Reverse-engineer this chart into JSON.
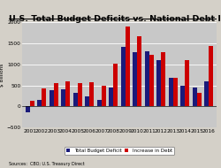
{
  "title": "U.S. Total Budget Deficits vs. National Debt Increases",
  "ylabel": "$ Billions",
  "years": [
    2001,
    2002,
    2003,
    2004,
    2005,
    2006,
    2007,
    2008,
    2009,
    2010,
    2011,
    2012,
    2013,
    2014,
    2015,
    2016
  ],
  "deficit": [
    -128,
    158,
    378,
    413,
    318,
    248,
    162,
    455,
    1413,
    1294,
    1300,
    1087,
    680,
    485,
    438,
    585
  ],
  "debt_increase": [
    133,
    421,
    555,
    596,
    554,
    574,
    500,
    1017,
    1885,
    1651,
    1229,
    1276,
    672,
    1086,
    327,
    1423
  ],
  "deficit_color": "#1a1a7a",
  "debt_color": "#CC0000",
  "plot_bg_color": "#C8C8C8",
  "fig_bg_color": "#D4D0C8",
  "ylim": [
    -500,
    2000
  ],
  "yticks": [
    -500,
    0,
    500,
    1000,
    1500,
    2000
  ],
  "legend_labels": [
    "Total Budget Deficit",
    "Increase in Debt"
  ],
  "source_text": "Sources:  CBO; U.S. Treasury Direct",
  "title_fontsize": 6.8,
  "tick_fontsize": 4.2,
  "ylabel_fontsize": 4.2,
  "legend_fontsize": 4.0,
  "source_fontsize": 3.5
}
